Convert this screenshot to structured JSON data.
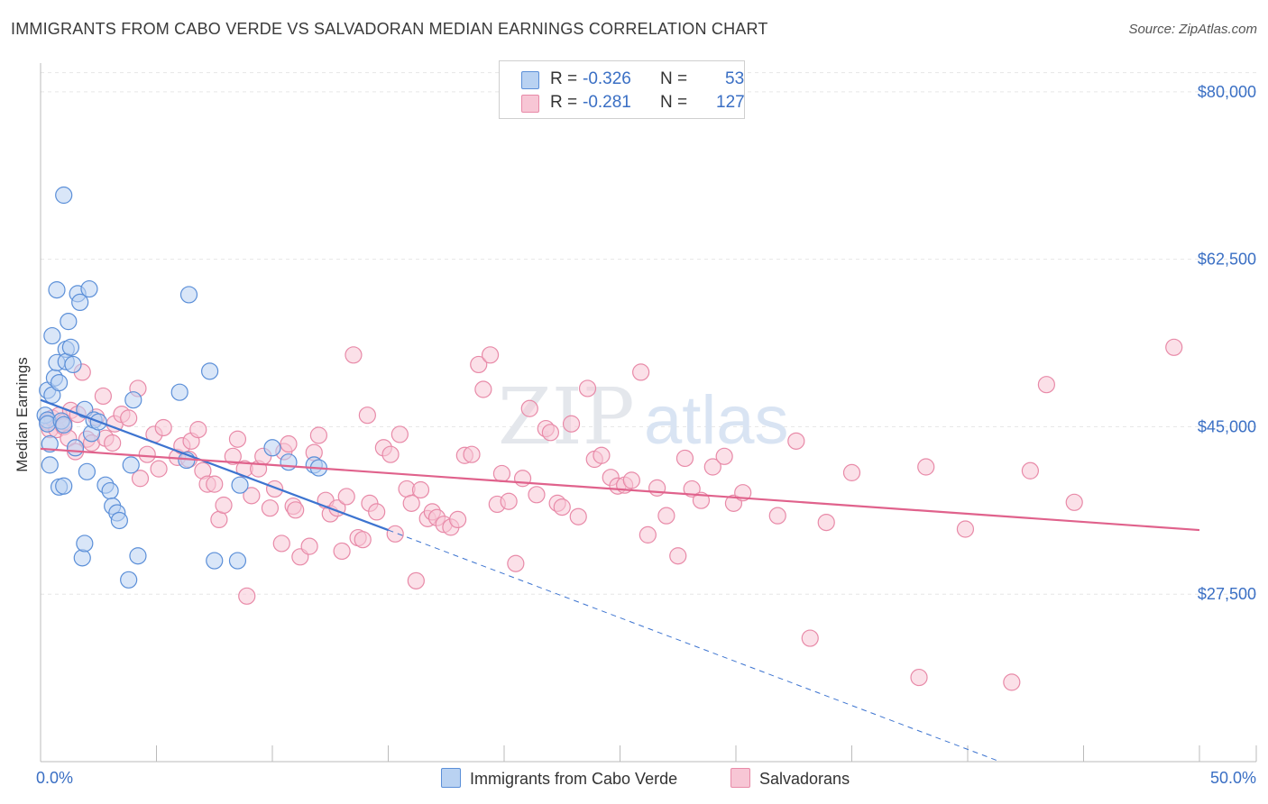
{
  "title": "IMMIGRANTS FROM CABO VERDE VS SALVADORAN MEDIAN EARNINGS CORRELATION CHART",
  "source": "Source: ZipAtlas.com",
  "watermark": {
    "zip": "ZIP",
    "atlas": "atlas"
  },
  "colors": {
    "blue_fill": "#b9d2f2",
    "blue_stroke": "#5b8fd8",
    "blue_line": "#3d74d0",
    "pink_fill": "#f7c6d5",
    "pink_stroke": "#e88aa8",
    "pink_line": "#e0628c",
    "tick_label": "#3a6fc4",
    "grid": "#e6e6e6"
  },
  "legend": {
    "series1": {
      "r_label": "R =",
      "r_value": "-0.326",
      "n_label": "N =",
      "n_value": "53"
    },
    "series2": {
      "r_label": "R =",
      "r_value": "-0.281",
      "n_label": "N =",
      "n_value": "127"
    }
  },
  "chart_data": {
    "type": "scatter",
    "title": "IMMIGRANTS FROM CABO VERDE VS SALVADORAN MEDIAN EARNINGS CORRELATION CHART",
    "xlabel": "",
    "ylabel": "Median Earnings",
    "xlim": [
      0,
      50
    ],
    "ylim": [
      10000,
      83000
    ],
    "x_tick_labels": [
      "0.0%",
      "50.0%"
    ],
    "y_ticks": [
      27500,
      45000,
      62500,
      80000
    ],
    "y_tick_labels": [
      "$27,500",
      "$45,000",
      "$62,500",
      "$80,000"
    ],
    "grid": true,
    "legend_position": "top-center",
    "series": [
      {
        "name": "Immigrants from Cabo Verde",
        "color": "blue",
        "points": [
          [
            0.2,
            46200
          ],
          [
            0.3,
            45700
          ],
          [
            0.3,
            48800
          ],
          [
            0.3,
            45300
          ],
          [
            0.4,
            43200
          ],
          [
            0.4,
            41000
          ],
          [
            0.5,
            48300
          ],
          [
            0.5,
            54500
          ],
          [
            0.6,
            50100
          ],
          [
            0.7,
            51700
          ],
          [
            0.7,
            59300
          ],
          [
            0.8,
            49600
          ],
          [
            0.8,
            38700
          ],
          [
            0.9,
            45600
          ],
          [
            1.0,
            69200
          ],
          [
            1.0,
            38800
          ],
          [
            1.0,
            45200
          ],
          [
            1.1,
            53100
          ],
          [
            1.1,
            51800
          ],
          [
            1.2,
            56000
          ],
          [
            1.3,
            53300
          ],
          [
            1.4,
            51500
          ],
          [
            1.5,
            42800
          ],
          [
            1.6,
            58900
          ],
          [
            1.7,
            58000
          ],
          [
            1.8,
            31300
          ],
          [
            1.9,
            46800
          ],
          [
            1.9,
            32800
          ],
          [
            2.0,
            40300
          ],
          [
            2.1,
            59400
          ],
          [
            2.2,
            44300
          ],
          [
            2.3,
            45700
          ],
          [
            2.5,
            45500
          ],
          [
            2.8,
            38900
          ],
          [
            3.0,
            38300
          ],
          [
            3.1,
            36700
          ],
          [
            3.3,
            36000
          ],
          [
            3.4,
            35200
          ],
          [
            3.8,
            29000
          ],
          [
            3.9,
            41000
          ],
          [
            4.0,
            47800
          ],
          [
            4.2,
            31500
          ],
          [
            6.0,
            48600
          ],
          [
            6.3,
            41500
          ],
          [
            6.4,
            58800
          ],
          [
            7.3,
            50800
          ],
          [
            7.5,
            31000
          ],
          [
            8.5,
            31000
          ],
          [
            8.6,
            38900
          ],
          [
            10.0,
            42800
          ],
          [
            10.7,
            41300
          ],
          [
            11.8,
            41000
          ],
          [
            12.0,
            40700
          ]
        ]
      },
      {
        "name": "Salvadorans",
        "color": "pink",
        "points": [
          [
            0.3,
            45500
          ],
          [
            0.4,
            44700
          ],
          [
            0.5,
            45900
          ],
          [
            0.7,
            44700
          ],
          [
            0.8,
            46200
          ],
          [
            1.0,
            45500
          ],
          [
            1.0,
            45000
          ],
          [
            1.2,
            43800
          ],
          [
            1.3,
            46700
          ],
          [
            1.5,
            42400
          ],
          [
            1.6,
            46300
          ],
          [
            1.8,
            50700
          ],
          [
            2.0,
            43700
          ],
          [
            2.2,
            43300
          ],
          [
            2.4,
            46000
          ],
          [
            2.7,
            48200
          ],
          [
            2.8,
            43800
          ],
          [
            3.1,
            43300
          ],
          [
            3.2,
            45300
          ],
          [
            3.5,
            46300
          ],
          [
            3.8,
            45900
          ],
          [
            4.2,
            49000
          ],
          [
            4.3,
            39600
          ],
          [
            4.6,
            42100
          ],
          [
            4.9,
            44200
          ],
          [
            5.1,
            40600
          ],
          [
            5.3,
            44900
          ],
          [
            5.9,
            41800
          ],
          [
            6.1,
            43000
          ],
          [
            6.4,
            41600
          ],
          [
            6.5,
            43500
          ],
          [
            6.8,
            44700
          ],
          [
            7.0,
            40400
          ],
          [
            7.2,
            39000
          ],
          [
            7.5,
            39000
          ],
          [
            7.7,
            35300
          ],
          [
            7.9,
            36800
          ],
          [
            8.3,
            41900
          ],
          [
            8.5,
            43700
          ],
          [
            8.8,
            40600
          ],
          [
            8.9,
            27300
          ],
          [
            9.1,
            37800
          ],
          [
            9.4,
            40600
          ],
          [
            9.6,
            41900
          ],
          [
            9.9,
            36500
          ],
          [
            10.1,
            38500
          ],
          [
            10.4,
            32800
          ],
          [
            10.5,
            42400
          ],
          [
            10.7,
            43200
          ],
          [
            10.9,
            36700
          ],
          [
            11.0,
            36300
          ],
          [
            11.2,
            31400
          ],
          [
            11.6,
            32500
          ],
          [
            11.8,
            42300
          ],
          [
            12.0,
            44100
          ],
          [
            12.3,
            37300
          ],
          [
            12.5,
            35900
          ],
          [
            12.8,
            36500
          ],
          [
            13.0,
            32000
          ],
          [
            13.2,
            37700
          ],
          [
            13.5,
            52500
          ],
          [
            13.7,
            33400
          ],
          [
            13.9,
            33200
          ],
          [
            14.1,
            46200
          ],
          [
            14.2,
            37000
          ],
          [
            14.5,
            36100
          ],
          [
            14.8,
            42800
          ],
          [
            15.1,
            42100
          ],
          [
            15.3,
            33800
          ],
          [
            15.5,
            44200
          ],
          [
            15.8,
            38500
          ],
          [
            16.0,
            37000
          ],
          [
            16.2,
            28900
          ],
          [
            16.4,
            38400
          ],
          [
            16.7,
            35400
          ],
          [
            16.9,
            36100
          ],
          [
            17.1,
            35500
          ],
          [
            17.4,
            34800
          ],
          [
            17.7,
            34500
          ],
          [
            18.0,
            35300
          ],
          [
            18.3,
            42000
          ],
          [
            18.6,
            42100
          ],
          [
            18.9,
            51500
          ],
          [
            19.1,
            48900
          ],
          [
            19.4,
            52500
          ],
          [
            19.7,
            36900
          ],
          [
            19.9,
            40100
          ],
          [
            20.2,
            37200
          ],
          [
            20.5,
            30700
          ],
          [
            20.8,
            39600
          ],
          [
            21.1,
            46900
          ],
          [
            21.4,
            37900
          ],
          [
            21.8,
            44800
          ],
          [
            22.0,
            44400
          ],
          [
            22.3,
            37000
          ],
          [
            22.5,
            36600
          ],
          [
            22.9,
            45300
          ],
          [
            23.2,
            35600
          ],
          [
            23.6,
            49000
          ],
          [
            23.9,
            41600
          ],
          [
            24.2,
            42000
          ],
          [
            24.6,
            39700
          ],
          [
            24.9,
            38800
          ],
          [
            25.2,
            38900
          ],
          [
            25.5,
            39400
          ],
          [
            25.9,
            50700
          ],
          [
            26.2,
            33700
          ],
          [
            26.6,
            38600
          ],
          [
            27.0,
            35700
          ],
          [
            27.5,
            31500
          ],
          [
            27.8,
            41700
          ],
          [
            28.1,
            38500
          ],
          [
            28.5,
            37300
          ],
          [
            29.0,
            40800
          ],
          [
            29.5,
            41900
          ],
          [
            29.9,
            37000
          ],
          [
            30.3,
            38100
          ],
          [
            31.8,
            35700
          ],
          [
            32.6,
            43500
          ],
          [
            33.2,
            22900
          ],
          [
            33.9,
            35000
          ],
          [
            35.0,
            40200
          ],
          [
            37.9,
            18800
          ],
          [
            38.2,
            40800
          ],
          [
            39.9,
            34300
          ],
          [
            41.9,
            18300
          ],
          [
            42.7,
            40400
          ],
          [
            43.4,
            49400
          ],
          [
            44.6,
            37100
          ],
          [
            48.9,
            53300
          ]
        ]
      }
    ],
    "trend_lines": [
      {
        "series": "Immigrants from Cabo Verde",
        "from": [
          0,
          47800
        ],
        "to": [
          15,
          34200
        ],
        "dashed_to": [
          41.4,
          10000
        ]
      },
      {
        "series": "Salvadorans",
        "from": [
          0,
          42700
        ],
        "to": [
          50,
          34200
        ]
      }
    ]
  },
  "bottom_legend": {
    "series1_label": "Immigrants from Cabo Verde",
    "series2_label": "Salvadorans"
  }
}
